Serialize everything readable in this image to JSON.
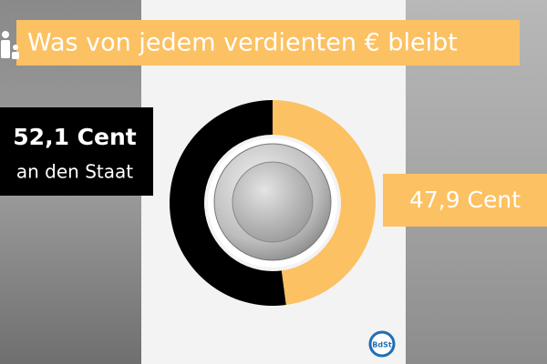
{
  "chart_data": {
    "type": "donut",
    "title": "Was von jedem verdienten € bleibt",
    "categories": [
      "an den Staat",
      null
    ],
    "values": [
      52.1,
      47.9
    ],
    "value_labels": [
      "52,1 Cent",
      "47,9 Cent"
    ],
    "colors": [
      "#000000",
      "#fcc162"
    ]
  },
  "logo": "BdSt"
}
